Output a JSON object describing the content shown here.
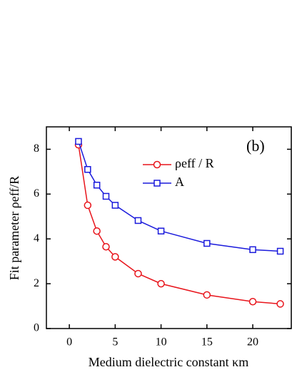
{
  "chart_data": {
    "type": "line",
    "annotation": "(b)",
    "x_label": "Medium dielectric constant κm",
    "y_label": "Fit parameter ρeff/R",
    "x": [
      1,
      2,
      3,
      4,
      5,
      7.5,
      10,
      15,
      20,
      23
    ],
    "series": [
      {
        "name": "ρeff / R",
        "color": "#e8141b",
        "marker": "circle",
        "values": [
          8.2,
          5.5,
          4.35,
          3.65,
          3.2,
          2.45,
          2.0,
          1.5,
          1.2,
          1.1
        ]
      },
      {
        "name": "A",
        "color": "#1a1adc",
        "marker": "square",
        "values": [
          8.35,
          7.1,
          6.4,
          5.9,
          5.5,
          4.82,
          4.35,
          3.8,
          3.52,
          3.45
        ]
      }
    ],
    "xlim": [
      -2.5,
      24.2
    ],
    "ylim": [
      0,
      9
    ],
    "xticks": [
      0,
      5,
      10,
      15,
      20
    ],
    "yticks": [
      0,
      2,
      4,
      6,
      8
    ]
  }
}
